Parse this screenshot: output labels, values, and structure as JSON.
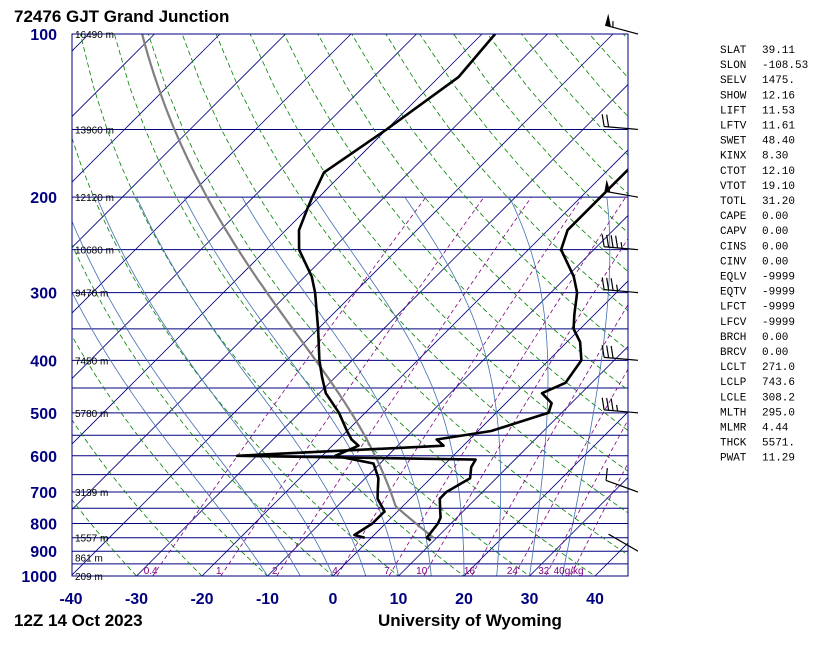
{
  "header": {
    "title": "72476 GJT Grand Junction"
  },
  "footer": {
    "date": "12Z 14 Oct 2023",
    "source": "University of Wyoming"
  },
  "chart_data": {
    "type": "skew-t log-p",
    "pressure_levels": [
      100,
      200,
      300,
      400,
      500,
      600,
      700,
      800,
      900,
      1000
    ],
    "pressure_labels": [
      "100",
      "200",
      "300",
      "400",
      "500",
      "600",
      "700",
      "800",
      "900",
      "1000"
    ],
    "temp_ticks": [
      -40,
      -30,
      -20,
      -10,
      0,
      10,
      20,
      30,
      40
    ],
    "temp_labels": [
      "-40",
      "-30",
      "-20",
      "-10",
      "0",
      "10",
      "20",
      "30",
      "40"
    ],
    "heights": [
      {
        "p": 100,
        "label": "16490 m"
      },
      {
        "p": 150,
        "label": "13960 m"
      },
      {
        "p": 200,
        "label": "12120 m"
      },
      {
        "p": 250,
        "label": "10680 m"
      },
      {
        "p": 300,
        "label": "9470 m"
      },
      {
        "p": 400,
        "label": "7450 m"
      },
      {
        "p": 500,
        "label": "5780 m"
      },
      {
        "p": 700,
        "label": "3139 m"
      },
      {
        "p": 850,
        "label": "1557 m"
      },
      {
        "p": 925,
        "label": "861 m"
      },
      {
        "p": 1000,
        "label": "209 m"
      }
    ],
    "mixing_ratio_labels": [
      {
        "w": 0.4,
        "label": "0.4"
      },
      {
        "w": 1,
        "label": "1"
      },
      {
        "w": 2,
        "label": "2"
      },
      {
        "w": 4,
        "label": "4"
      },
      {
        "w": 7,
        "label": "7"
      },
      {
        "w": 10,
        "label": "10"
      },
      {
        "w": 16,
        "label": "16"
      },
      {
        "w": 24,
        "label": "24"
      },
      {
        "w": 32,
        "label": "32"
      },
      {
        "w": 40,
        "label": "40g/kg"
      }
    ],
    "temperature": [
      [
        860,
        9.5
      ],
      [
        850,
        8.5
      ],
      [
        800,
        8.0
      ],
      [
        780,
        7.5
      ],
      [
        760,
        6.5
      ],
      [
        720,
        4.5
      ],
      [
        700,
        4.5
      ],
      [
        660,
        6.0
      ],
      [
        630,
        4.5
      ],
      [
        610,
        4.0
      ],
      [
        600,
        -33
      ],
      [
        575,
        -3
      ],
      [
        560,
        -5
      ],
      [
        540,
        2
      ],
      [
        500,
        8
      ],
      [
        480,
        7
      ],
      [
        460,
        4
      ],
      [
        440,
        6
      ],
      [
        400,
        5
      ],
      [
        370,
        2
      ],
      [
        350,
        -1
      ],
      [
        330,
        -3
      ],
      [
        300,
        -6
      ],
      [
        280,
        -9
      ],
      [
        250,
        -15
      ],
      [
        230,
        -17
      ],
      [
        200,
        -17
      ],
      [
        190,
        -17
      ],
      [
        160,
        -17
      ],
      [
        150,
        -18
      ],
      [
        130,
        -18
      ],
      [
        110,
        -18
      ],
      [
        100,
        -16
      ]
    ],
    "dewpoint": [
      [
        850,
        -1
      ],
      [
        840,
        -3
      ],
      [
        800,
        -2
      ],
      [
        760,
        -2
      ],
      [
        720,
        -5
      ],
      [
        700,
        -6
      ],
      [
        660,
        -8
      ],
      [
        620,
        -11
      ],
      [
        600,
        -18
      ],
      [
        575,
        -16
      ],
      [
        560,
        -18
      ],
      [
        540,
        -20
      ],
      [
        500,
        -24
      ],
      [
        460,
        -29
      ],
      [
        430,
        -32
      ],
      [
        400,
        -35
      ],
      [
        350,
        -40
      ],
      [
        300,
        -46
      ],
      [
        280,
        -49
      ],
      [
        250,
        -55
      ],
      [
        230,
        -58
      ],
      [
        210,
        -60
      ],
      [
        200,
        -61
      ],
      [
        180,
        -63
      ],
      [
        150,
        -60
      ],
      [
        120,
        -57
      ],
      [
        100,
        -58
      ]
    ],
    "wind_barbs": [
      {
        "p": 100,
        "dir": 285,
        "spd": 55
      },
      {
        "p": 150,
        "dir": 275,
        "spd": 20
      },
      {
        "p": 200,
        "dir": 280,
        "spd": 50
      },
      {
        "p": 250,
        "dir": 275,
        "spd": 45
      },
      {
        "p": 300,
        "dir": 275,
        "spd": 35
      },
      {
        "p": 400,
        "dir": 275,
        "spd": 30
      },
      {
        "p": 500,
        "dir": 275,
        "spd": 35
      },
      {
        "p": 700,
        "dir": 290,
        "spd": 10
      },
      {
        "p": 900,
        "dir": 300,
        "spd": 0
      }
    ],
    "indices": [
      {
        "name": "SLAT",
        "value": "39.11"
      },
      {
        "name": "SLON",
        "value": "-108.53"
      },
      {
        "name": "SELV",
        "value": "1475."
      },
      {
        "name": "SHOW",
        "value": "12.16"
      },
      {
        "name": "LIFT",
        "value": "11.53"
      },
      {
        "name": "LFTV",
        "value": "11.61"
      },
      {
        "name": "SWET",
        "value": "48.40"
      },
      {
        "name": "KINX",
        "value": "8.30"
      },
      {
        "name": "CTOT",
        "value": "12.10"
      },
      {
        "name": "VTOT",
        "value": "19.10"
      },
      {
        "name": "TOTL",
        "value": "31.20"
      },
      {
        "name": "CAPE",
        "value": "0.00"
      },
      {
        "name": "CAPV",
        "value": "0.00"
      },
      {
        "name": "CINS",
        "value": "0.00"
      },
      {
        "name": "CINV",
        "value": "0.00"
      },
      {
        "name": "EQLV",
        "value": "-9999"
      },
      {
        "name": "EQTV",
        "value": "-9999"
      },
      {
        "name": "LFCT",
        "value": "-9999"
      },
      {
        "name": "LFCV",
        "value": "-9999"
      },
      {
        "name": "BRCH",
        "value": "0.00"
      },
      {
        "name": "BRCV",
        "value": "0.00"
      },
      {
        "name": "LCLT",
        "value": "271.0"
      },
      {
        "name": "LCLP",
        "value": "743.6"
      },
      {
        "name": "LCLE",
        "value": "308.2"
      },
      {
        "name": "MLTH",
        "value": "295.0"
      },
      {
        "name": "MLMR",
        "value": "4.44"
      },
      {
        "name": "THCK",
        "value": "5571."
      },
      {
        "name": "PWAT",
        "value": "11.29"
      }
    ],
    "colors": {
      "isobar": "#000080",
      "isotherm": "#000080",
      "dry_adiabat": "#008000",
      "moist_adiabat": "#4070b0",
      "mixing_ratio": "#800080",
      "parcel": "#808080",
      "sounding": "#000000"
    }
  }
}
